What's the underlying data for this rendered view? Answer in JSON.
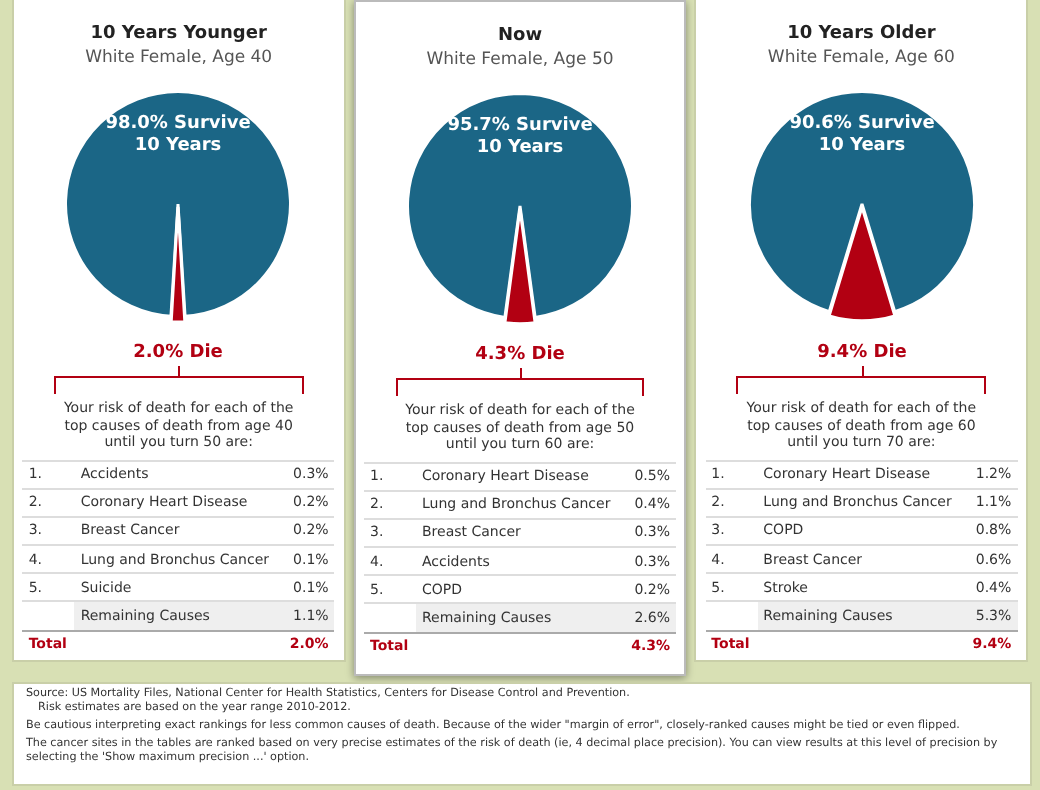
{
  "chart_data": [
    {
      "type": "pie",
      "title": "10 Years Younger",
      "subtitle": "White Female, Age 40",
      "categories": [
        null,
        null
      ],
      "values": [
        98.0,
        2.0
      ],
      "colors": [
        "#1b6686",
        "#b20012"
      ],
      "value_labels": [
        "98.0% Survive 10 Years",
        "2.0% Die"
      ],
      "annotations": [
        "Your risk of death for each of the top causes of death from age 40 until you turn 50 are:",
        "1.",
        "Accidents",
        "0.3%",
        "2.",
        "Coronary Heart Disease",
        "0.2%",
        "3.",
        "Breast Cancer",
        "0.2%",
        "4.",
        "Lung and Bronchus Cancer",
        "0.1%",
        "5.",
        "Suicide",
        "0.1%",
        "Remaining Causes",
        "1.1%",
        "Total",
        "2.0%"
      ]
    },
    {
      "type": "pie",
      "title": "Now",
      "subtitle": "White Female, Age 50",
      "categories": [
        null,
        null
      ],
      "values": [
        95.7,
        4.3
      ],
      "colors": [
        "#1b6686",
        "#b20012"
      ],
      "value_labels": [
        "95.7% Survive 10 Years",
        "4.3% Die"
      ],
      "annotations": [
        "Your risk of death for each of the top causes of death from age 50 until you turn 60 are:",
        "1.",
        "Coronary Heart Disease",
        "0.5%",
        "2.",
        "Lung and Bronchus Cancer",
        "0.4%",
        "3.",
        "Breast Cancer",
        "0.3%",
        "4.",
        "Accidents",
        "0.3%",
        "5.",
        "COPD",
        "0.2%",
        "Remaining Causes",
        "2.6%",
        "Total",
        "4.3%"
      ]
    },
    {
      "type": "pie",
      "title": "10 Years Older",
      "subtitle": "White Female, Age 60",
      "categories": [
        null,
        null
      ],
      "values": [
        90.6,
        9.4
      ],
      "colors": [
        "#1b6686",
        "#b20012"
      ],
      "value_labels": [
        "90.6% Survive 10 Years",
        "9.4% Die"
      ],
      "annotations": [
        "Your risk of death for each of the top causes of death from age 60 until you turn 70 are:",
        "1.",
        "Coronary Heart Disease",
        "1.2%",
        "2.",
        "Lung and Bronchus Cancer",
        "1.1%",
        "3.",
        "COPD",
        "0.8%",
        "4.",
        "Breast Cancer",
        "0.6%",
        "5.",
        "Stroke",
        "0.4%",
        "Remaining Causes",
        "5.3%",
        "Total",
        "9.4%"
      ]
    },
    {
      "type": "other",
      "annotations": [
        "Source: US Mortality Files, National Center for Health Statistics, Centers for Disease Control and Prevention.",
        "Risk estimates are based on the year range 2010-2012.",
        "Be cautious interpreting exact rankings for less common causes of death. Because of the wider \"margin of error\", closely-ranked causes might be tied or even flipped.",
        "The cancer sites in the tables are ranked based on very precise estimates of the risk of death (ie, 4 decimal place precision). You can view results at this level of precision by selecting the 'Show maximum precision ...' option."
      ]
    }
  ]
}
